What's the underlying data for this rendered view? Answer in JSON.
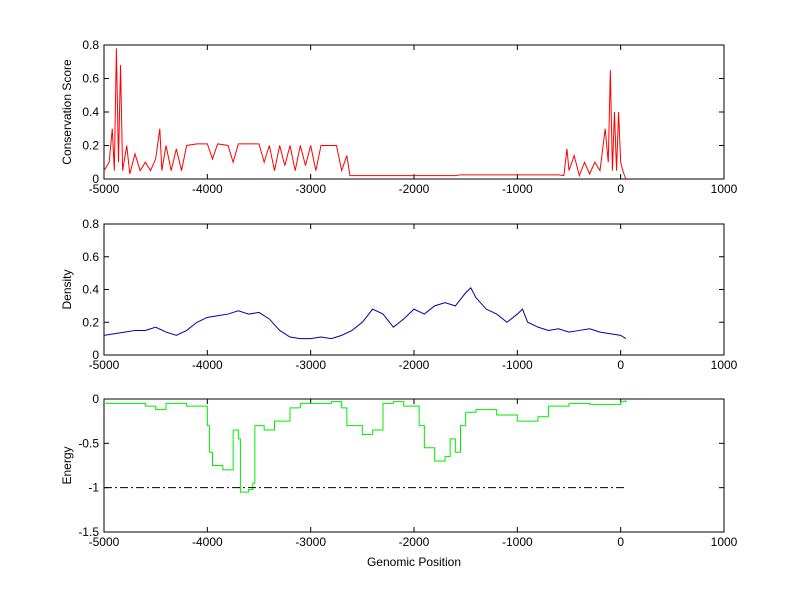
{
  "chart_data": [
    {
      "type": "line",
      "ylabel": "Conservation Score",
      "xlim": [
        -5000,
        1000
      ],
      "xticks": [
        -5000,
        -4000,
        -3000,
        -2000,
        -1000,
        0,
        1000
      ],
      "ylim": [
        0,
        0.8
      ],
      "yticks": [
        0,
        0.2,
        0.4,
        0.6,
        0.8
      ],
      "series": [
        {
          "color": "#ff0000",
          "step": false,
          "x": [
            -5000,
            -4950,
            -4920,
            -4900,
            -4880,
            -4860,
            -4840,
            -4820,
            -4780,
            -4750,
            -4700,
            -4650,
            -4600,
            -4550,
            -4500,
            -4460,
            -4440,
            -4400,
            -4350,
            -4300,
            -4250,
            -4200,
            -4100,
            -4000,
            -3950,
            -3900,
            -3800,
            -3750,
            -3700,
            -3600,
            -3500,
            -3450,
            -3400,
            -3350,
            -3300,
            -3250,
            -3200,
            -3150,
            -3100,
            -3050,
            -3000,
            -2950,
            -2900,
            -2800,
            -2750,
            -2700,
            -2650,
            -2620,
            -2000,
            -1600,
            -1550,
            -600,
            -550,
            -520,
            -500,
            -450,
            -400,
            -350,
            -300,
            -250,
            -200,
            -150,
            -120,
            -100,
            -80,
            -60,
            -40,
            -20,
            0,
            20,
            50
          ],
          "values": [
            0.05,
            0.1,
            0.3,
            0.05,
            0.78,
            0.1,
            0.68,
            0.05,
            0.2,
            0.03,
            0.15,
            0.05,
            0.1,
            0.05,
            0.12,
            0.3,
            0.05,
            0.2,
            0.05,
            0.18,
            0.05,
            0.2,
            0.21,
            0.21,
            0.12,
            0.21,
            0.2,
            0.1,
            0.21,
            0.21,
            0.21,
            0.1,
            0.2,
            0.05,
            0.2,
            0.08,
            0.2,
            0.05,
            0.2,
            0.08,
            0.2,
            0.05,
            0.2,
            0.2,
            0.2,
            0.05,
            0.14,
            0.02,
            0.02,
            0.02,
            0.025,
            0.025,
            0.02,
            0.18,
            0.05,
            0.14,
            0.02,
            0.1,
            0.03,
            0.1,
            0.05,
            0.3,
            0.1,
            0.65,
            0.05,
            0.4,
            0.05,
            0.4,
            0.1,
            0.05,
            0
          ]
        }
      ]
    },
    {
      "type": "line",
      "ylabel": "Density",
      "xlim": [
        -5000,
        1000
      ],
      "xticks": [
        -5000,
        -4000,
        -3000,
        -2000,
        -1000,
        0,
        1000
      ],
      "ylim": [
        0,
        0.8
      ],
      "yticks": [
        0,
        0.2,
        0.4,
        0.6,
        0.8
      ],
      "series": [
        {
          "color": "#0000aa",
          "step": false,
          "x": [
            -5000,
            -4900,
            -4800,
            -4700,
            -4600,
            -4500,
            -4400,
            -4300,
            -4200,
            -4100,
            -4000,
            -3900,
            -3800,
            -3700,
            -3600,
            -3500,
            -3400,
            -3300,
            -3200,
            -3100,
            -3000,
            -2900,
            -2800,
            -2700,
            -2600,
            -2500,
            -2400,
            -2300,
            -2200,
            -2100,
            -2000,
            -1900,
            -1800,
            -1700,
            -1600,
            -1500,
            -1450,
            -1400,
            -1300,
            -1200,
            -1100,
            -1000,
            -950,
            -900,
            -800,
            -700,
            -600,
            -500,
            -400,
            -300,
            -200,
            -100,
            0,
            50
          ],
          "values": [
            0.12,
            0.13,
            0.14,
            0.15,
            0.15,
            0.17,
            0.14,
            0.12,
            0.15,
            0.2,
            0.23,
            0.24,
            0.25,
            0.27,
            0.25,
            0.26,
            0.22,
            0.15,
            0.11,
            0.1,
            0.1,
            0.11,
            0.1,
            0.12,
            0.15,
            0.2,
            0.28,
            0.25,
            0.17,
            0.22,
            0.28,
            0.25,
            0.3,
            0.32,
            0.3,
            0.38,
            0.41,
            0.35,
            0.28,
            0.25,
            0.2,
            0.25,
            0.28,
            0.2,
            0.17,
            0.15,
            0.16,
            0.14,
            0.15,
            0.16,
            0.14,
            0.13,
            0.12,
            0.1
          ]
        }
      ]
    },
    {
      "type": "line",
      "ylabel": "Energy",
      "xlabel": "Genomic Position",
      "xlim": [
        -5000,
        1000
      ],
      "xticks": [
        -5000,
        -4000,
        -3000,
        -2000,
        -1000,
        0,
        1000
      ],
      "ylim": [
        -1.5,
        0
      ],
      "yticks": [
        -1.5,
        -1,
        -0.5,
        0
      ],
      "series": [
        {
          "color": "#00ee00",
          "step": true,
          "x": [
            -5000,
            -4600,
            -4500,
            -4400,
            -4200,
            -4000,
            -3980,
            -3950,
            -3850,
            -3750,
            -3700,
            -3680,
            -3600,
            -3560,
            -3540,
            -3450,
            -3350,
            -3200,
            -3100,
            -2800,
            -2700,
            -2650,
            -2500,
            -2400,
            -2300,
            -2200,
            -2100,
            -1950,
            -1900,
            -1800,
            -1700,
            -1650,
            -1600,
            -1550,
            -1500,
            -1400,
            -1200,
            -1000,
            -800,
            -700,
            -500,
            -300,
            0,
            50
          ],
          "values": [
            -0.05,
            -0.08,
            -0.12,
            -0.05,
            -0.08,
            -0.3,
            -0.6,
            -0.75,
            -0.8,
            -0.35,
            -0.45,
            -1.05,
            -1.02,
            -0.95,
            -0.3,
            -0.35,
            -0.25,
            -0.1,
            -0.05,
            -0.03,
            -0.1,
            -0.3,
            -0.4,
            -0.35,
            -0.05,
            -0.03,
            -0.08,
            -0.3,
            -0.55,
            -0.7,
            -0.65,
            -0.45,
            -0.6,
            -0.3,
            -0.15,
            -0.12,
            -0.18,
            -0.25,
            -0.2,
            -0.08,
            -0.05,
            -0.06,
            -0.03,
            0
          ]
        },
        {
          "color": "#000000",
          "step": false,
          "dash": true,
          "x": [
            -5000,
            50
          ],
          "values": [
            -1,
            -1
          ]
        }
      ]
    }
  ]
}
